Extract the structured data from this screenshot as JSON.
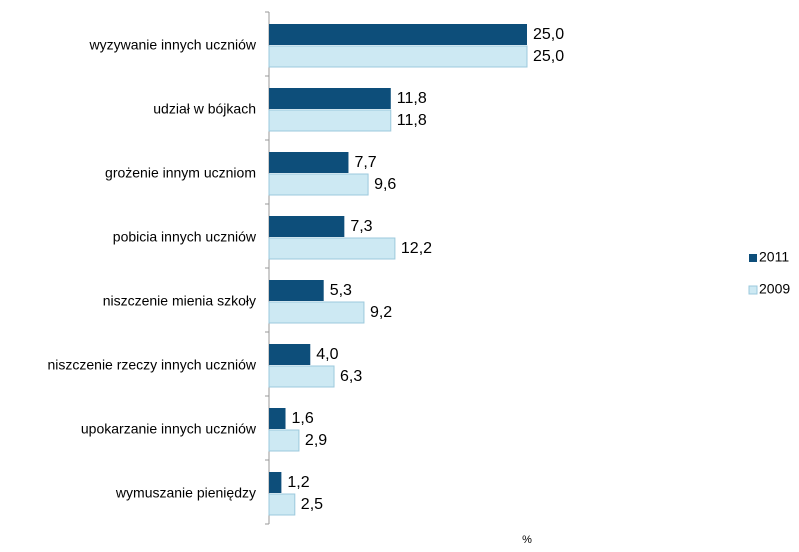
{
  "chart_data": {
    "type": "hbar",
    "categories": [
      "wyzywanie innych uczniów",
      "udział w bójkach",
      "grożenie innym uczniom",
      "pobicia innych uczniów",
      "niszczenie mienia szkoły",
      "niszczenie rzeczy innych uczniów",
      "upokarzanie innych uczniów",
      "wymuszanie pieniędzy"
    ],
    "series": [
      {
        "name": "2011",
        "color": "#0d4e7a",
        "values": [
          25.0,
          11.8,
          7.7,
          7.3,
          5.3,
          4.0,
          1.6,
          1.2
        ],
        "value_labels": [
          "25,0",
          "11,8",
          "7,7",
          "7,3",
          "5,3",
          "4,0",
          "1,6",
          "1,2"
        ]
      },
      {
        "name": "2009",
        "color": "#cde9f3",
        "values": [
          25.0,
          11.8,
          9.6,
          12.2,
          9.2,
          6.3,
          2.9,
          2.5
        ],
        "value_labels": [
          "25,0",
          "11,8",
          "9,6",
          "12,2",
          "9,2",
          "6,3",
          "2,9",
          "2,5"
        ]
      }
    ],
    "x_label": "%",
    "xlim": [
      0,
      25
    ],
    "legend": "right"
  }
}
